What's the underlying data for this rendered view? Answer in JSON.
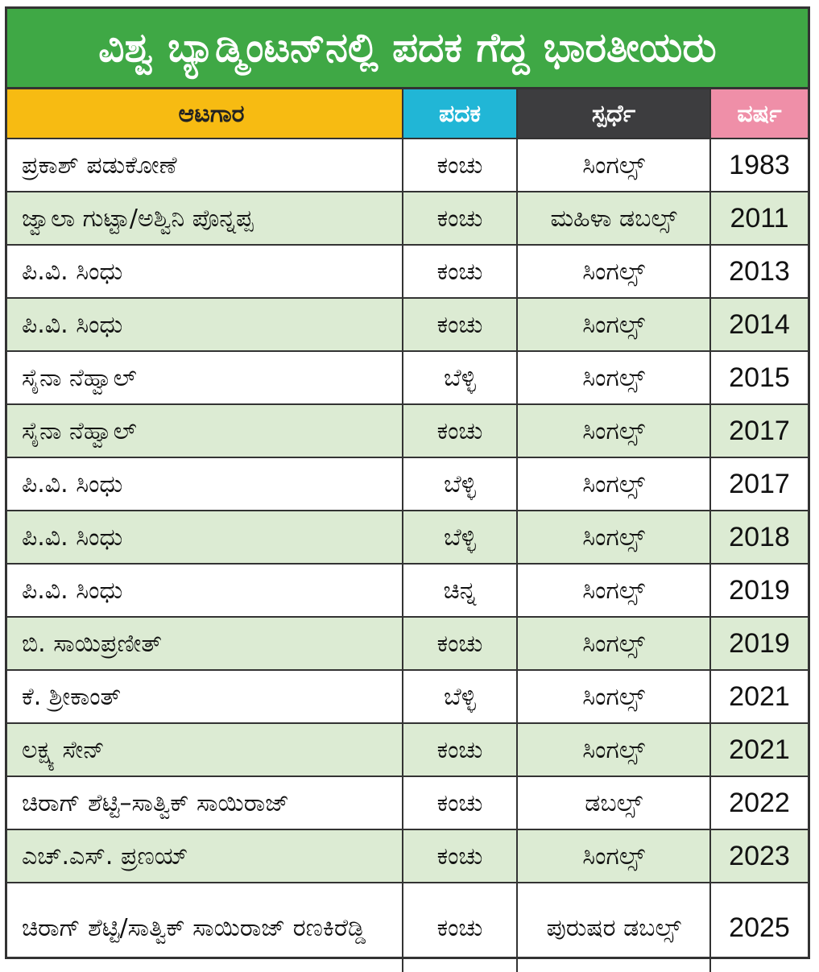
{
  "title": "ವಿಶ್ವ ಬ್ಯಾಡ್ಮಿಂಟನ್‌ನಲ್ಲಿ ಪದಕ ಗೆದ್ದ ಭಾರತೀಯರು",
  "colors": {
    "title_bg": "#3fa845",
    "player_header": "#f7bb12",
    "medal_header": "#21b6d6",
    "event_header": "#3d3d3f",
    "year_header": "#ef8fa8",
    "alt_row": "#dcebd3"
  },
  "headers": {
    "player": "ಆಟಗಾರ",
    "medal": "ಪದಕ",
    "event": "ಸ್ಪರ್ಧೆ",
    "year": "ವರ್ಷ"
  },
  "rows": [
    {
      "player": "ಪ್ರಕಾಶ್ ಪಡುಕೋಣೆ",
      "medal": "ಕಂಚು",
      "event": "ಸಿಂಗಲ್ಸ್",
      "year": "1983"
    },
    {
      "player": "ಜ್ವಾಲಾ ಗುಟ್ಟಾ/ಅಶ್ವಿನಿ ಪೊನ್ನಪ್ಪ",
      "medal": "ಕಂಚು",
      "event": "ಮಹಿಳಾ ಡಬಲ್ಸ್",
      "year": "2011"
    },
    {
      "player": "ಪಿ.ವಿ. ಸಿಂಧು",
      "medal": "ಕಂಚು",
      "event": "ಸಿಂಗಲ್ಸ್",
      "year": "2013"
    },
    {
      "player": "ಪಿ.ವಿ. ಸಿಂಧು",
      "medal": "ಕಂಚು",
      "event": "ಸಿಂಗಲ್ಸ್",
      "year": "2014"
    },
    {
      "player": "ಸೈನಾ ನೆಹ್ವಾಲ್",
      "medal": "ಬೆಳ್ಳಿ",
      "event": "ಸಿಂಗಲ್ಸ್",
      "year": "2015"
    },
    {
      "player": "ಸೈನಾ ನೆಹ್ವಾಲ್",
      "medal": "ಕಂಚು",
      "event": "ಸಿಂಗಲ್ಸ್",
      "year": "2017"
    },
    {
      "player": "ಪಿ.ವಿ. ಸಿಂಧು",
      "medal": "ಬೆಳ್ಳಿ",
      "event": "ಸಿಂಗಲ್ಸ್",
      "year": "2017"
    },
    {
      "player": "ಪಿ.ವಿ. ಸಿಂಧು",
      "medal": "ಬೆಳ್ಳಿ",
      "event": "ಸಿಂಗಲ್ಸ್",
      "year": "2018"
    },
    {
      "player": "ಪಿ.ವಿ. ಸಿಂಧು",
      "medal": "ಚಿನ್ನ",
      "event": "ಸಿಂಗಲ್ಸ್",
      "year": "2019"
    },
    {
      "player": "ಬಿ. ಸಾಯಿಪ್ರಣೀತ್",
      "medal": "ಕಂಚು",
      "event": "ಸಿಂಗಲ್ಸ್",
      "year": "2019"
    },
    {
      "player": "ಕೆ. ಶ್ರೀಕಾಂತ್",
      "medal": "ಬೆಳ್ಳಿ",
      "event": "ಸಿಂಗಲ್ಸ್",
      "year": "2021"
    },
    {
      "player": "ಲಕ್ಷ್ಯ ಸೇನ್",
      "medal": "ಕಂಚು",
      "event": "ಸಿಂಗಲ್ಸ್",
      "year": "2021"
    },
    {
      "player": "ಚಿರಾಗ್ ಶೆಟ್ಟಿ–ಸಾತ್ವಿಕ್ ಸಾಯಿರಾಜ್",
      "medal": "ಕಂಚು",
      "event": "ಡಬಲ್ಸ್",
      "year": "2022"
    },
    {
      "player": "ಎಚ್.ಎಸ್. ಪ್ರಣಯ್",
      "medal": "ಕಂಚು",
      "event": "ಸಿಂಗಲ್ಸ್",
      "year": "2023"
    },
    {
      "player": "ಚಿರಾಗ್ ಶೆಟ್ಟಿ/ಸಾತ್ವಿಕ್ ಸಾಯಿರಾಜ್ ರಣಕಿರೆಡ್ಡಿ",
      "medal": "ಕಂಚು",
      "event": "ಪುರುಷರ ಡಬಲ್ಸ್",
      "year": "2025"
    }
  ]
}
